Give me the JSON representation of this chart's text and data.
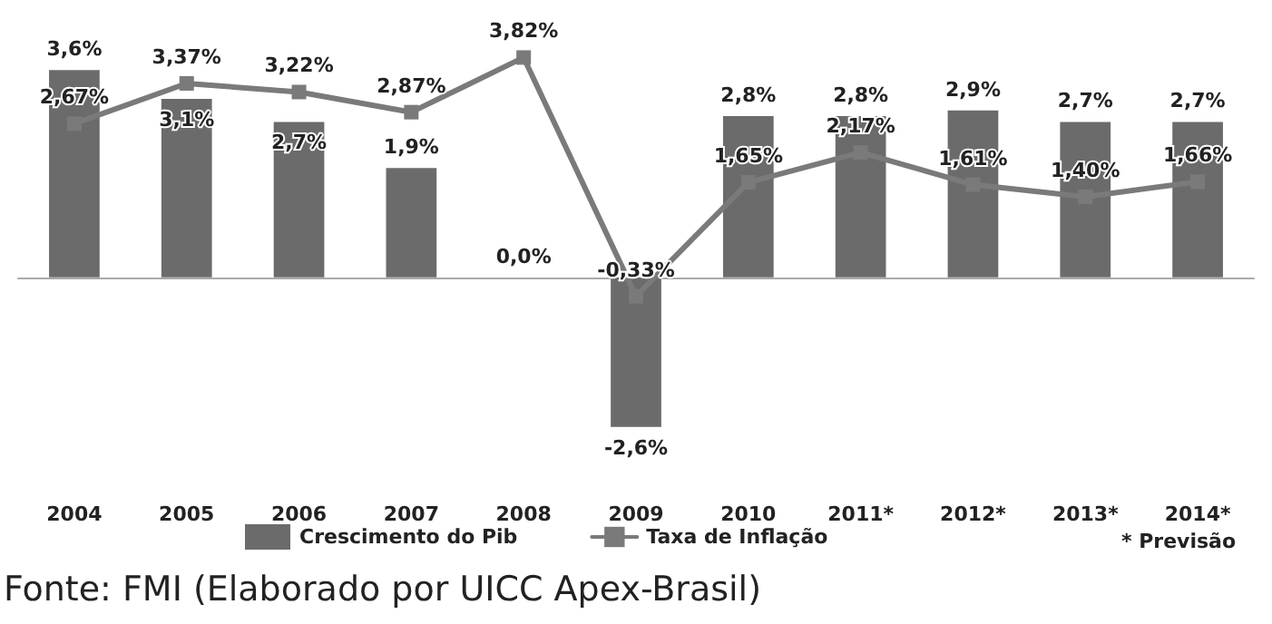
{
  "chart_data": {
    "type": "bar",
    "categories": [
      "2004",
      "2005",
      "2006",
      "2007",
      "2008",
      "2009",
      "2010",
      "2011*",
      "2012*",
      "2013*",
      "2014*"
    ],
    "series": [
      {
        "name": "Crescimento do Pib",
        "color": "#6b6b6b",
        "values": [
          3.6,
          3.1,
          2.7,
          1.9,
          0.0,
          -2.6,
          2.8,
          2.8,
          2.9,
          2.7,
          2.7
        ],
        "value_labels": [
          "3,6%",
          "3,1%",
          "2,7%",
          "1,9%",
          "0,0%",
          "-2,6%",
          "2,8%",
          "2,8%",
          "2,9%",
          "2,7%",
          "2,7%"
        ]
      },
      {
        "name": "Taxa de Inflação",
        "type": "line",
        "color": "#7a7a7a",
        "values": [
          2.67,
          3.37,
          3.22,
          2.87,
          3.82,
          -0.33,
          1.65,
          2.17,
          1.61,
          1.4,
          1.66
        ],
        "value_labels": [
          "2,67%",
          "3,37%",
          "3,22%",
          "2,87%",
          "3,82%",
          "-0,33%",
          "1,65%",
          "2,17%",
          "1,61%",
          "1,40%",
          "1,66%"
        ]
      }
    ],
    "legend": "bottom",
    "marker": "square",
    "grid": false,
    "annotations": [
      "* Previsão",
      "Fonte: FMI (Elaborado por UICC Apex-Brasil)"
    ]
  }
}
